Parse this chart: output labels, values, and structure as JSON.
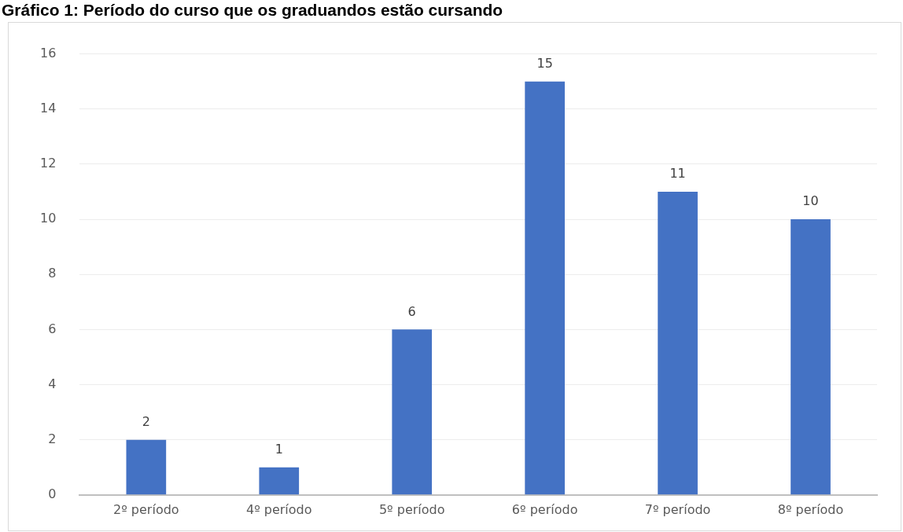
{
  "chart_data": {
    "type": "bar",
    "title": "Gráfico 1: Período do curso que os graduandos estão cursando",
    "categories": [
      "2º período",
      "4º período",
      "5º período",
      "6º período",
      "7º período",
      "8º período"
    ],
    "values": [
      2,
      1,
      6,
      15,
      11,
      10
    ],
    "color": "#4472c4",
    "ylim": [
      0,
      16
    ],
    "yticks": [
      0,
      2,
      4,
      6,
      8,
      10,
      12,
      14,
      16
    ],
    "grid": "y",
    "data_labels": true
  }
}
